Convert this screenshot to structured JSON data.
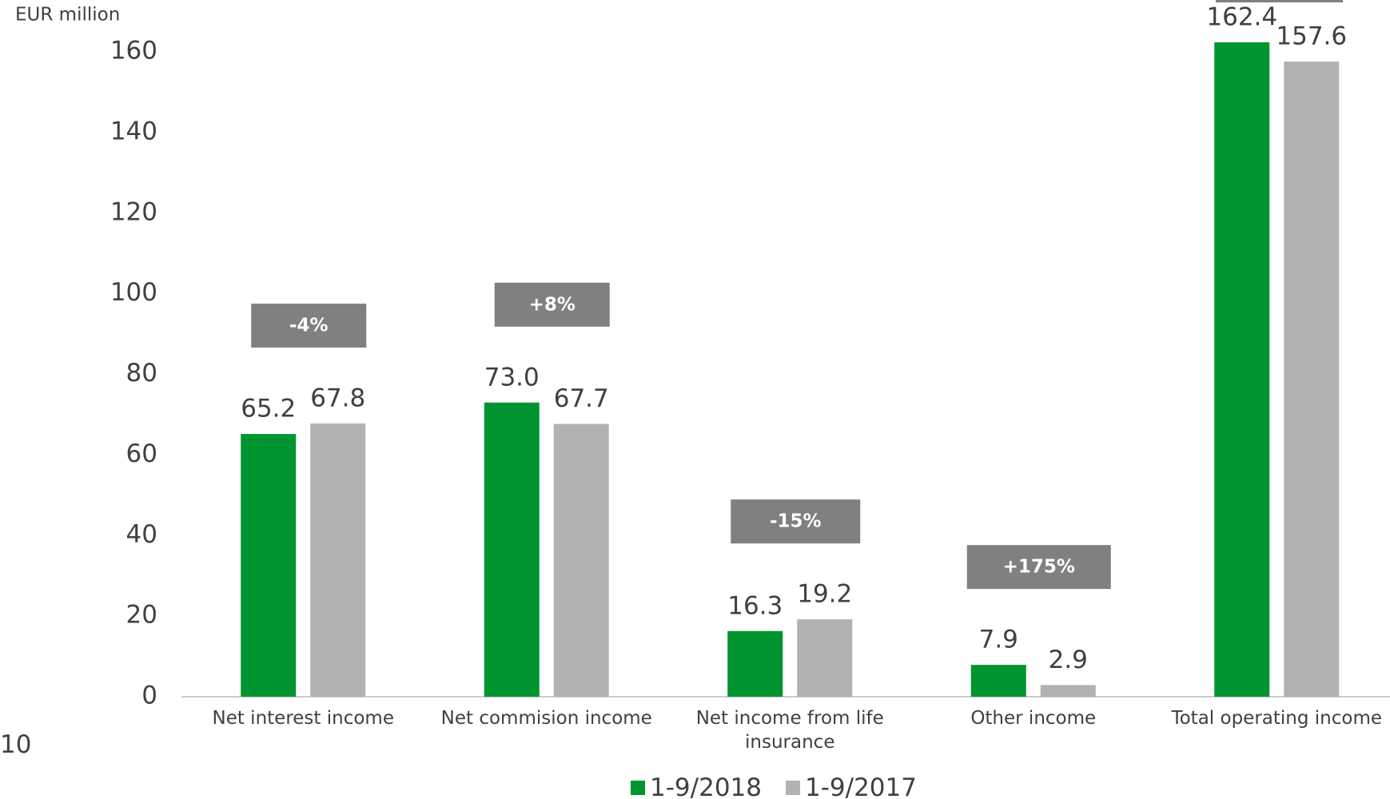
{
  "page_number": "10",
  "chart_data": {
    "type": "bar",
    "y_axis_label": "EUR million",
    "categories": [
      "Net interest income",
      "Net commision income",
      "Net income from life insurance",
      "Other income",
      "Total operating income"
    ],
    "series": [
      {
        "name": "1-9/2018",
        "color": "#009530",
        "values": [
          65.2,
          73.0,
          16.3,
          7.9,
          162.4
        ],
        "value_labels": [
          "65.2",
          "73.0",
          "16.3",
          "7.9",
          "162.4"
        ]
      },
      {
        "name": "1-9/2017",
        "color": "#b1b2b4",
        "values": [
          67.8,
          67.7,
          19.2,
          2.9,
          157.6
        ],
        "value_labels": [
          "67.8",
          "67.7",
          "19.2",
          "2.9",
          "157.6"
        ]
      }
    ],
    "annotations": [
      "-4%",
      "+8%",
      "-15%",
      "+175%",
      null
    ],
    "annotation_color": "#808080",
    "ylim": [
      0,
      160
    ],
    "yticks": [
      0,
      20,
      40,
      60,
      80,
      100,
      120,
      140,
      160
    ],
    "grid": false,
    "legend": "bottom"
  }
}
